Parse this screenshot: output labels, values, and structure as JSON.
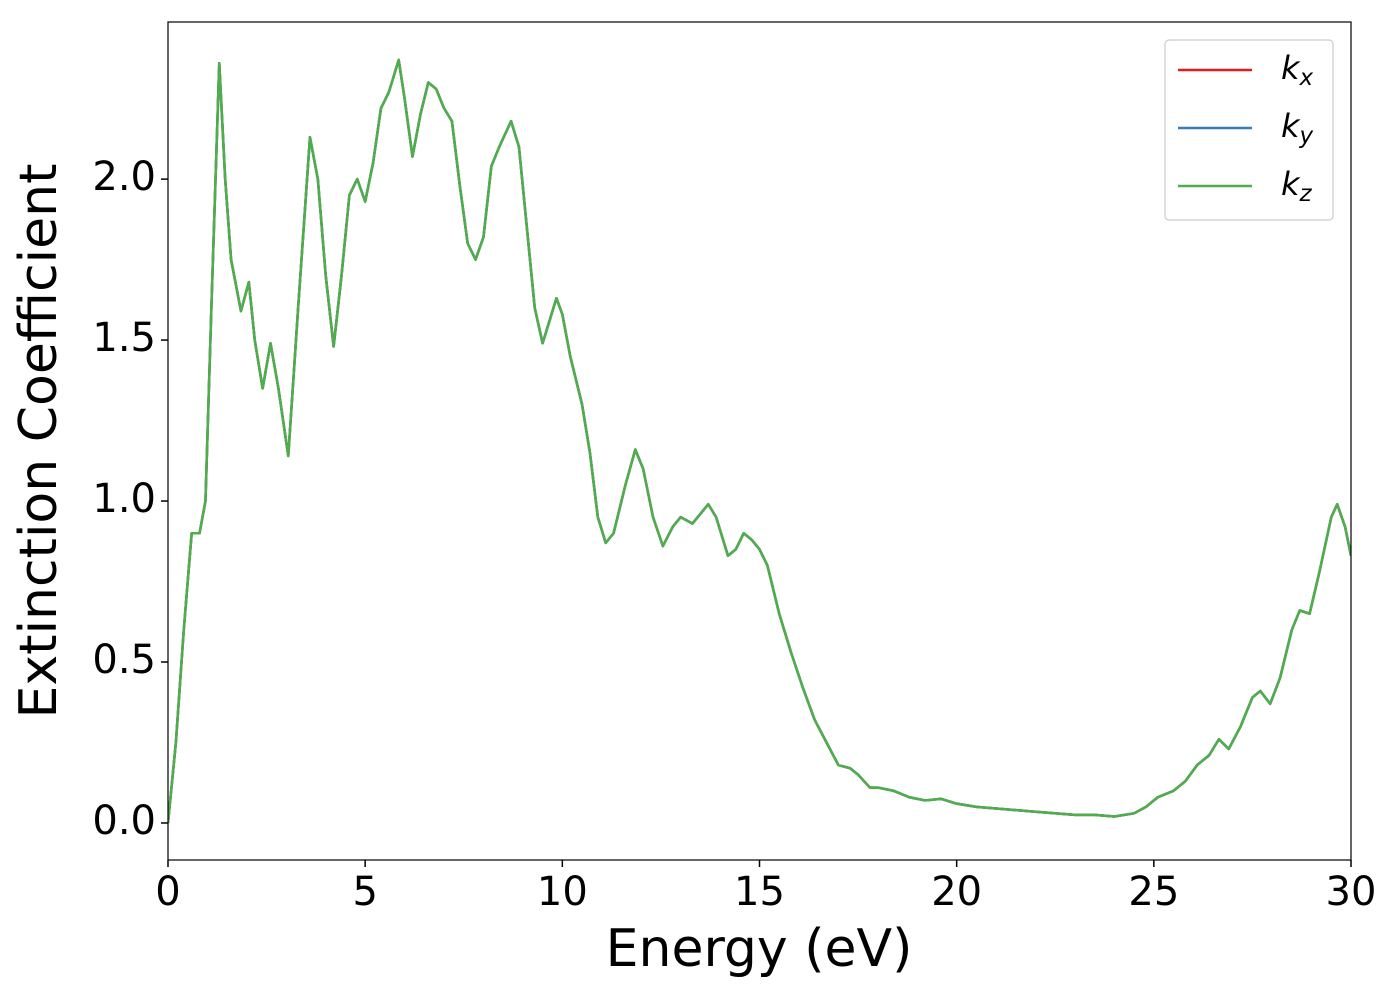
{
  "chart_data": {
    "type": "line",
    "xlabel": "Energy (eV)",
    "ylabel": "Extinction Coefficient",
    "xlim": [
      0,
      30
    ],
    "xticks": [
      0,
      5,
      10,
      15,
      20,
      25,
      30
    ],
    "ylim": [
      -0.115,
      2.488
    ],
    "yticks": [
      {
        "value": 0,
        "label": "0.0"
      },
      0.5,
      {
        "value": 1,
        "label": "1.0"
      },
      1.5,
      {
        "value": 2,
        "label": "2.0"
      }
    ],
    "legend": "upper right",
    "x": [
      0,
      0.2,
      0.4,
      0.6,
      0.8,
      0.95,
      1.1,
      1.3,
      1.45,
      1.6,
      1.85,
      2.05,
      2.2,
      2.4,
      2.6,
      2.8,
      3.05,
      3.3,
      3.6,
      3.8,
      4.0,
      4.2,
      4.4,
      4.6,
      4.8,
      5.0,
      5.2,
      5.4,
      5.6,
      5.85,
      6.0,
      6.2,
      6.4,
      6.6,
      6.8,
      7.0,
      7.2,
      7.4,
      7.6,
      7.8,
      8.0,
      8.2,
      8.4,
      8.7,
      8.9,
      9.1,
      9.3,
      9.5,
      9.65,
      9.85,
      10.0,
      10.2,
      10.5,
      10.7,
      10.9,
      11.1,
      11.3,
      11.6,
      11.85,
      12.05,
      12.3,
      12.55,
      12.8,
      13.0,
      13.3,
      13.5,
      13.7,
      13.9,
      14.2,
      14.4,
      14.6,
      14.8,
      15.0,
      15.2,
      15.5,
      15.8,
      16.1,
      16.4,
      16.7,
      17.0,
      17.3,
      17.5,
      17.8,
      18.0,
      18.4,
      18.8,
      19.2,
      19.6,
      20.0,
      20.5,
      21.0,
      21.5,
      22.0,
      23.0,
      23.5,
      24.0,
      24.5,
      24.8,
      25.1,
      25.5,
      25.8,
      26.1,
      26.4,
      26.65,
      26.9,
      27.2,
      27.5,
      27.7,
      27.95,
      28.2,
      28.5,
      28.7,
      28.95,
      29.2,
      29.5,
      29.65,
      29.85,
      30.0
    ],
    "series": [
      {
        "name": "kx",
        "color": "#e41a1c",
        "values": [
          0,
          0.25,
          0.6,
          0.9,
          0.9,
          1.0,
          1.6,
          2.36,
          2.0,
          1.75,
          1.59,
          1.68,
          1.5,
          1.35,
          1.49,
          1.35,
          1.14,
          1.6,
          2.13,
          2.0,
          1.7,
          1.48,
          1.7,
          1.95,
          2.0,
          1.93,
          2.05,
          2.22,
          2.27,
          2.37,
          2.25,
          2.07,
          2.2,
          2.3,
          2.28,
          2.22,
          2.18,
          1.98,
          1.8,
          1.75,
          1.82,
          2.04,
          2.1,
          2.18,
          2.1,
          1.85,
          1.6,
          1.49,
          1.55,
          1.63,
          1.58,
          1.45,
          1.3,
          1.15,
          0.95,
          0.87,
          0.9,
          1.05,
          1.16,
          1.1,
          0.95,
          0.86,
          0.92,
          0.95,
          0.93,
          0.96,
          0.99,
          0.95,
          0.83,
          0.85,
          0.9,
          0.88,
          0.85,
          0.8,
          0.65,
          0.53,
          0.42,
          0.32,
          0.25,
          0.18,
          0.17,
          0.15,
          0.11,
          0.11,
          0.1,
          0.08,
          0.07,
          0.075,
          0.06,
          0.05,
          0.045,
          0.04,
          0.035,
          0.025,
          0.025,
          0.02,
          0.03,
          0.05,
          0.08,
          0.1,
          0.13,
          0.18,
          0.21,
          0.26,
          0.23,
          0.3,
          0.39,
          0.41,
          0.37,
          0.45,
          0.6,
          0.66,
          0.65,
          0.78,
          0.95,
          0.99,
          0.92,
          0.83
        ]
      },
      {
        "name": "ky",
        "color": "#377eb8",
        "values": [
          0,
          0.25,
          0.6,
          0.9,
          0.9,
          1.0,
          1.6,
          2.36,
          2.0,
          1.75,
          1.59,
          1.68,
          1.5,
          1.35,
          1.49,
          1.35,
          1.14,
          1.6,
          2.13,
          2.0,
          1.7,
          1.48,
          1.7,
          1.95,
          2.0,
          1.93,
          2.05,
          2.22,
          2.27,
          2.37,
          2.25,
          2.07,
          2.2,
          2.3,
          2.28,
          2.22,
          2.18,
          1.98,
          1.8,
          1.75,
          1.82,
          2.04,
          2.1,
          2.18,
          2.1,
          1.85,
          1.6,
          1.49,
          1.55,
          1.63,
          1.58,
          1.45,
          1.3,
          1.15,
          0.95,
          0.87,
          0.9,
          1.05,
          1.16,
          1.1,
          0.95,
          0.86,
          0.92,
          0.95,
          0.93,
          0.96,
          0.99,
          0.95,
          0.83,
          0.85,
          0.9,
          0.88,
          0.85,
          0.8,
          0.65,
          0.53,
          0.42,
          0.32,
          0.25,
          0.18,
          0.17,
          0.15,
          0.11,
          0.11,
          0.1,
          0.08,
          0.07,
          0.075,
          0.06,
          0.05,
          0.045,
          0.04,
          0.035,
          0.025,
          0.025,
          0.02,
          0.03,
          0.05,
          0.08,
          0.1,
          0.13,
          0.18,
          0.21,
          0.26,
          0.23,
          0.3,
          0.39,
          0.41,
          0.37,
          0.45,
          0.6,
          0.66,
          0.65,
          0.78,
          0.95,
          0.99,
          0.92,
          0.83
        ]
      },
      {
        "name": "kz",
        "color": "#4daf4a",
        "values": [
          0,
          0.25,
          0.6,
          0.9,
          0.9,
          1.0,
          1.6,
          2.36,
          2.0,
          1.75,
          1.59,
          1.68,
          1.5,
          1.35,
          1.49,
          1.35,
          1.14,
          1.6,
          2.13,
          2.0,
          1.7,
          1.48,
          1.7,
          1.95,
          2.0,
          1.93,
          2.05,
          2.22,
          2.27,
          2.37,
          2.25,
          2.07,
          2.2,
          2.3,
          2.28,
          2.22,
          2.18,
          1.98,
          1.8,
          1.75,
          1.82,
          2.04,
          2.1,
          2.18,
          2.1,
          1.85,
          1.6,
          1.49,
          1.55,
          1.63,
          1.58,
          1.45,
          1.3,
          1.15,
          0.95,
          0.87,
          0.9,
          1.05,
          1.16,
          1.1,
          0.95,
          0.86,
          0.92,
          0.95,
          0.93,
          0.96,
          0.99,
          0.95,
          0.83,
          0.85,
          0.9,
          0.88,
          0.85,
          0.8,
          0.65,
          0.53,
          0.42,
          0.32,
          0.25,
          0.18,
          0.17,
          0.15,
          0.11,
          0.11,
          0.1,
          0.08,
          0.07,
          0.075,
          0.06,
          0.05,
          0.045,
          0.04,
          0.035,
          0.025,
          0.025,
          0.02,
          0.03,
          0.05,
          0.08,
          0.1,
          0.13,
          0.18,
          0.21,
          0.26,
          0.23,
          0.3,
          0.39,
          0.41,
          0.37,
          0.45,
          0.6,
          0.66,
          0.65,
          0.78,
          0.95,
          0.99,
          0.92,
          0.83
        ]
      }
    ]
  }
}
